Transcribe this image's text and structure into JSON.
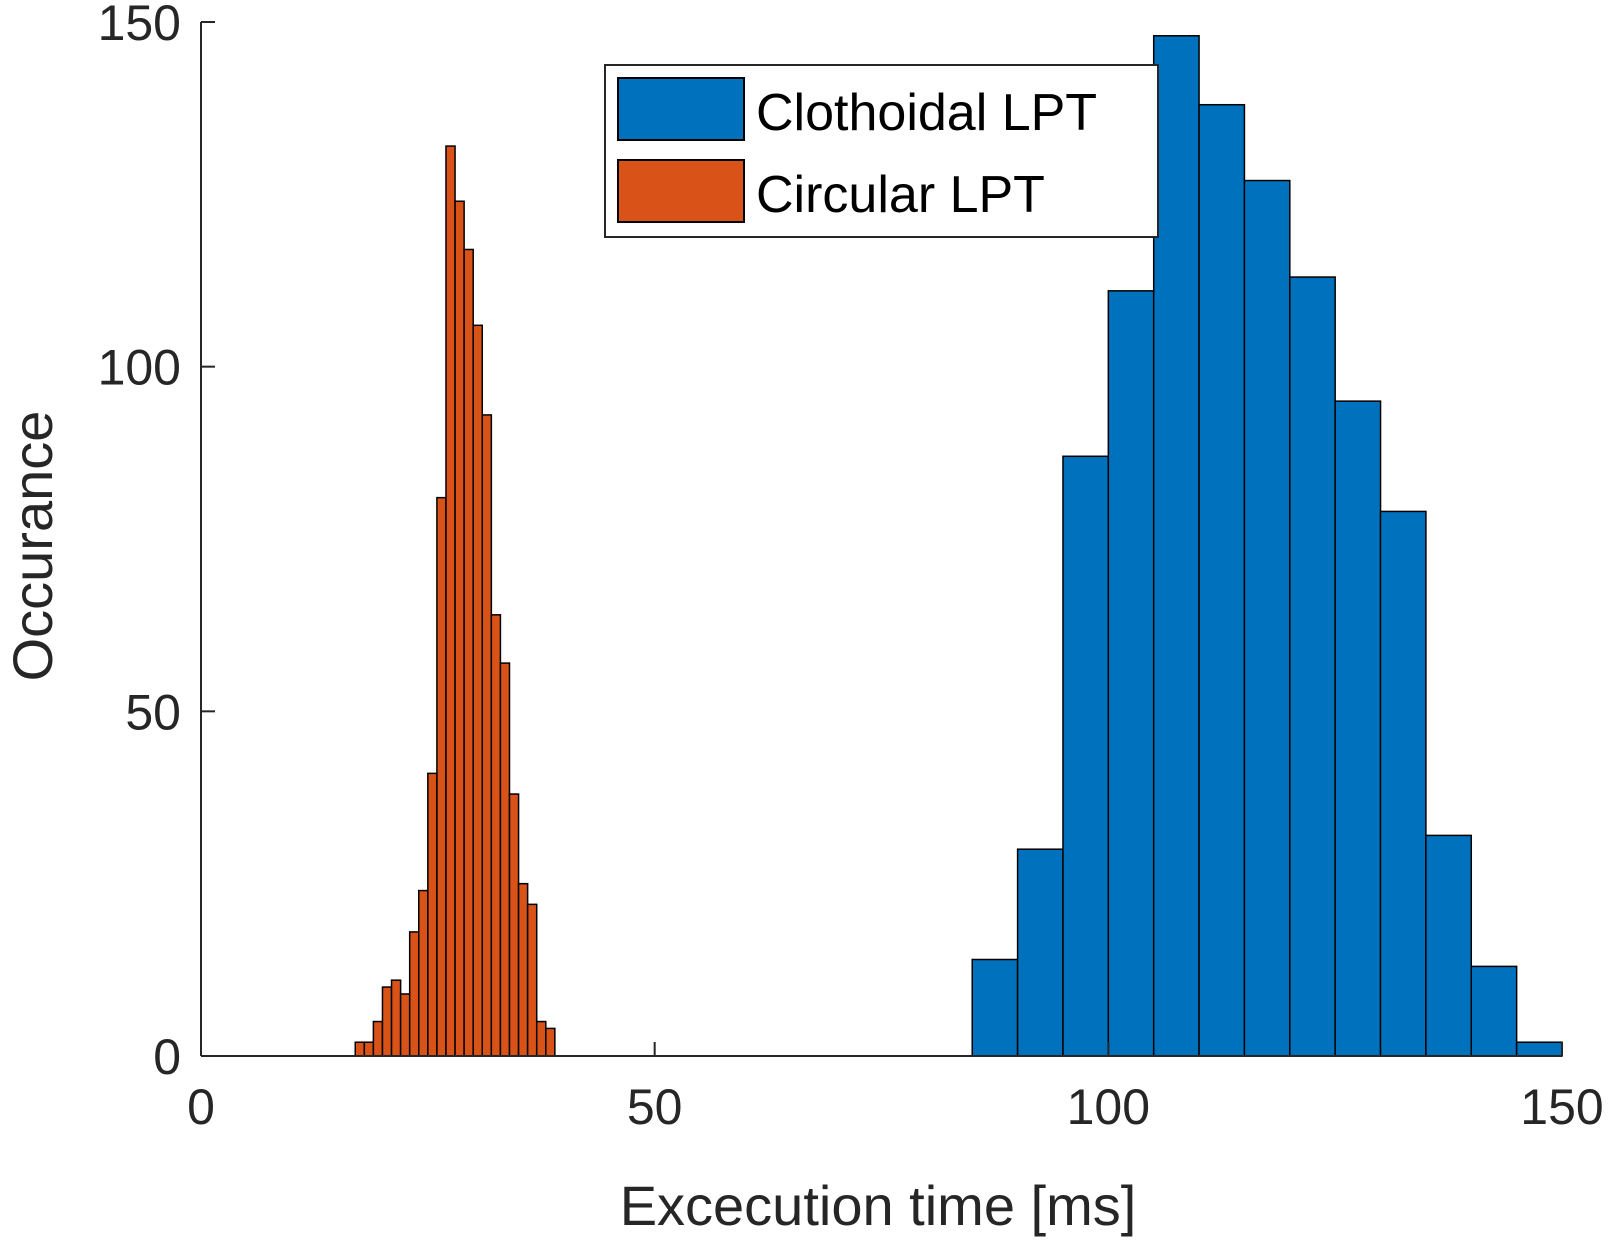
{
  "chart_data": {
    "type": "bar",
    "subtype": "histogram",
    "title": "",
    "xlabel": "Excecution time [ms]",
    "ylabel": "Occurance",
    "xlim": [
      0,
      150
    ],
    "ylim": [
      0,
      150
    ],
    "xticks": [
      0,
      50,
      100,
      150
    ],
    "yticks": [
      0,
      50,
      100,
      150
    ],
    "grid": false,
    "legend_position": "top-center",
    "series": [
      {
        "name": "Clothoidal LPT",
        "color": "#0072BD",
        "bin_edges": [
          85,
          90,
          95,
          100,
          105,
          110,
          115,
          120,
          125,
          130,
          135,
          140,
          145,
          150
        ],
        "values": [
          14,
          30,
          87,
          111,
          148,
          138,
          127,
          113,
          95,
          79,
          32,
          13,
          2
        ]
      },
      {
        "name": "Circular LPT",
        "color": "#D95319",
        "bin_edges": [
          17,
          18,
          19,
          20,
          21,
          22,
          23,
          24,
          25,
          26,
          27,
          28,
          29,
          30,
          31,
          32,
          33,
          34,
          35,
          36,
          37,
          38,
          39
        ],
        "values": [
          2,
          2,
          5,
          10,
          11,
          9,
          18,
          24,
          41,
          81,
          132,
          124,
          117,
          106,
          93,
          64,
          57,
          38,
          25,
          22,
          5,
          4
        ]
      }
    ]
  }
}
